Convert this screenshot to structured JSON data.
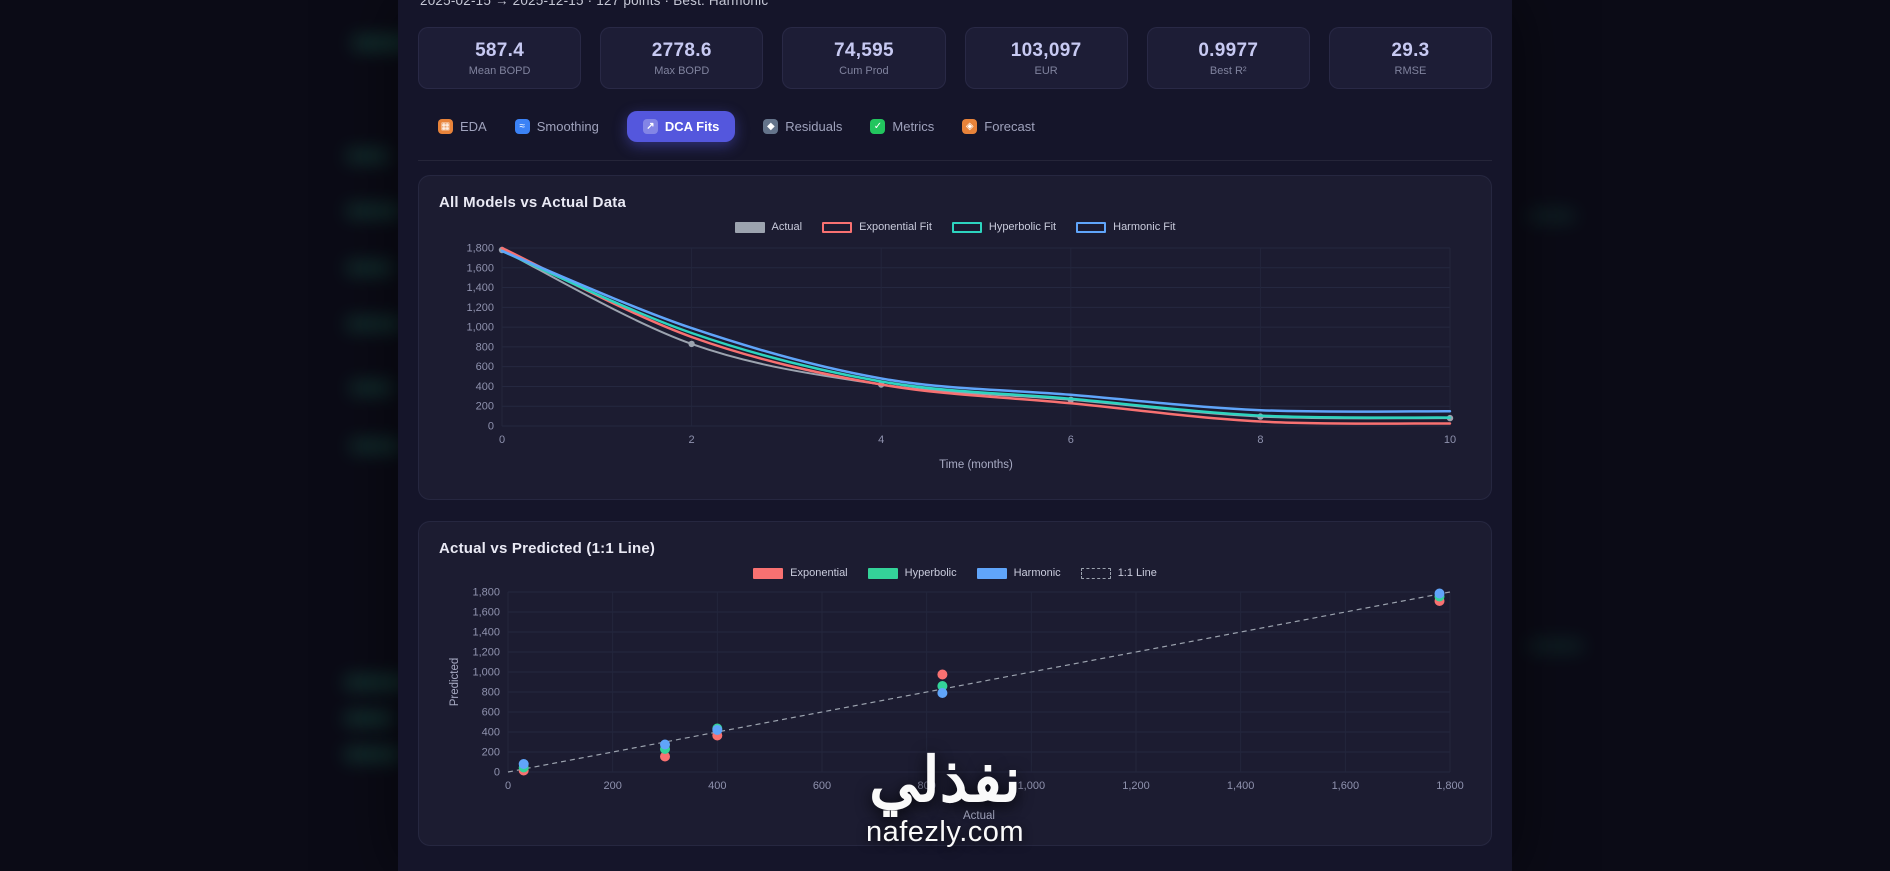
{
  "meta": {
    "range_text": "2025-02-15 → 2025-12-15 · 127 points · Best: Harmonic"
  },
  "stats": [
    {
      "value": "587.4",
      "label": "Mean BOPD"
    },
    {
      "value": "2778.6",
      "label": "Max BOPD"
    },
    {
      "value": "74,595",
      "label": "Cum Prod"
    },
    {
      "value": "103,097",
      "label": "EUR"
    },
    {
      "value": "0.9977",
      "label": "Best R²"
    },
    {
      "value": "29.3",
      "label": "RMSE"
    }
  ],
  "tabs": [
    {
      "label": "EDA",
      "glyph": "▦",
      "active": false
    },
    {
      "label": "Smoothing",
      "glyph": "≈",
      "active": false
    },
    {
      "label": "DCA Fits",
      "glyph": "↗",
      "active": true
    },
    {
      "label": "Residuals",
      "glyph": "◆",
      "active": false
    },
    {
      "label": "Metrics",
      "glyph": "✓",
      "active": false
    },
    {
      "label": "Forecast",
      "glyph": "◈",
      "active": false
    }
  ],
  "watermark": {
    "arabic": "نفذلي",
    "domain": "nafezly.com"
  },
  "colors": {
    "accent": "#5457dd",
    "actual": "#9ca3af",
    "exponential": "#f87171",
    "hyperbolic": "#2dd4bf",
    "harmonic": "#60a5fa"
  },
  "chart_data": [
    {
      "type": "line",
      "title": "All Models vs Actual Data",
      "xlabel": "Time (months)",
      "x_ticks": [
        "0",
        "2",
        "4",
        "6",
        "8",
        "10"
      ],
      "ylim": [
        0,
        1800
      ],
      "y_tick_step": 200,
      "grid": true,
      "legend_position": "top-center",
      "series": [
        {
          "name": "Actual",
          "color": "#9ca3af",
          "legend_swatch": "solid",
          "markers": true,
          "width": 2,
          "values": [
            1780,
            830,
            420,
            265,
            95,
            80
          ]
        },
        {
          "name": "Exponential Fit",
          "color": "#f87171",
          "legend_swatch": "outline",
          "markers": false,
          "width": 2.5,
          "values": [
            1800,
            900,
            420,
            230,
            45,
            25
          ]
        },
        {
          "name": "Hyperbolic Fit",
          "color": "#2dd4bf",
          "legend_swatch": "outline",
          "markers": false,
          "width": 2.5,
          "values": [
            1770,
            940,
            450,
            275,
            105,
            85
          ]
        },
        {
          "name": "Harmonic Fit",
          "color": "#60a5fa",
          "legend_swatch": "outline",
          "markers": false,
          "width": 2.5,
          "values": [
            1770,
            990,
            480,
            315,
            160,
            150
          ]
        }
      ]
    },
    {
      "type": "scatter",
      "title": "Actual vs Predicted (1:1 Line)",
      "xlabel": "Actual",
      "ylabel": "Predicted",
      "xlim": [
        0,
        1800
      ],
      "ylim": [
        0,
        1800
      ],
      "tick_step": 200,
      "grid": true,
      "identity_line": {
        "label": "1:1 Line",
        "color": "#9ca3af",
        "dash": true
      },
      "series": [
        {
          "name": "Exponential",
          "color": "#f87171",
          "points": [
            [
              30,
              15
            ],
            [
              300,
              155
            ],
            [
              400,
              365
            ],
            [
              830,
              975
            ],
            [
              1780,
              1710
            ]
          ]
        },
        {
          "name": "Hyperbolic",
          "color": "#34d399",
          "points": [
            [
              30,
              45
            ],
            [
              300,
              230
            ],
            [
              400,
              435
            ],
            [
              830,
              860
            ],
            [
              1780,
              1755
            ]
          ]
        },
        {
          "name": "Harmonic",
          "color": "#60a5fa",
          "points": [
            [
              30,
              80
            ],
            [
              300,
              275
            ],
            [
              400,
              420
            ],
            [
              830,
              790
            ],
            [
              1780,
              1785
            ]
          ]
        }
      ]
    }
  ]
}
